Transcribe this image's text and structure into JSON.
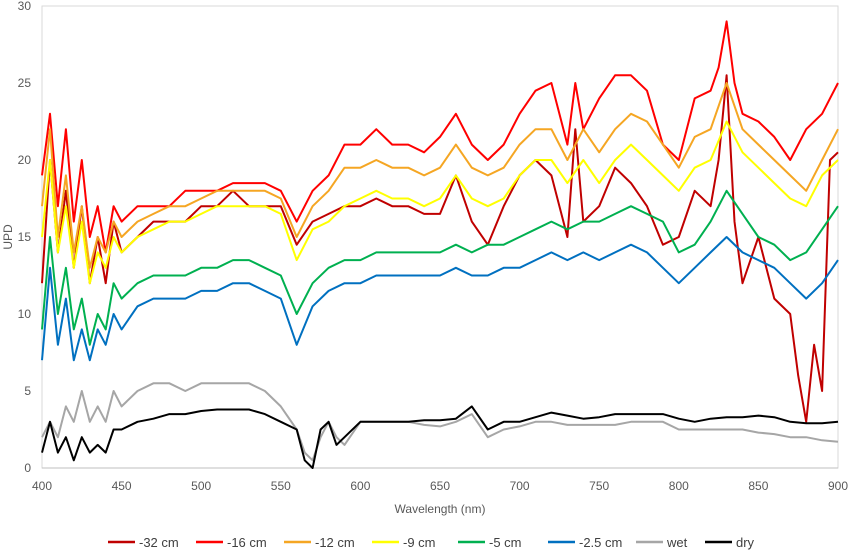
{
  "chart_data": {
    "type": "line",
    "title": "",
    "xlabel": "Wavelength (nm)",
    "ylabel": "UPD",
    "xlim": [
      400,
      900
    ],
    "ylim": [
      0,
      30
    ],
    "xticks": [
      400,
      450,
      500,
      550,
      600,
      650,
      700,
      750,
      800,
      850,
      900
    ],
    "yticks": [
      0,
      5,
      10,
      15,
      20,
      25,
      30
    ],
    "grid": false,
    "legend_position": "bottom",
    "series": [
      {
        "name": "-32 cm",
        "color": "#C00000",
        "x": [
          400,
          405,
          410,
          415,
          420,
          425,
          430,
          435,
          440,
          445,
          450,
          460,
          470,
          480,
          490,
          500,
          510,
          520,
          530,
          540,
          550,
          560,
          570,
          580,
          590,
          600,
          610,
          620,
          630,
          640,
          650,
          660,
          670,
          680,
          690,
          700,
          710,
          720,
          730,
          735,
          740,
          750,
          760,
          770,
          780,
          790,
          800,
          810,
          820,
          825,
          830,
          835,
          840,
          850,
          860,
          870,
          875,
          880,
          885,
          890,
          895,
          900
        ],
        "y": [
          12,
          20,
          14,
          18,
          13,
          17,
          12,
          15,
          12,
          16,
          14,
          15,
          16,
          16,
          16,
          17,
          17,
          18,
          17,
          17,
          17,
          14.5,
          16,
          16.5,
          17,
          17,
          17.5,
          17,
          17,
          16.5,
          16.5,
          19,
          16,
          14.5,
          17,
          19,
          20,
          19,
          15,
          22,
          16,
          17,
          19.5,
          18.5,
          17,
          14.5,
          15,
          18,
          17,
          20,
          25.5,
          16,
          12,
          15,
          11,
          10,
          6,
          3,
          8,
          5,
          20,
          20.5
        ]
      },
      {
        "name": "-16 cm",
        "color": "#FF0000",
        "x": [
          400,
          405,
          410,
          415,
          420,
          425,
          430,
          435,
          440,
          445,
          450,
          460,
          470,
          480,
          490,
          500,
          510,
          520,
          530,
          540,
          550,
          560,
          570,
          580,
          590,
          600,
          610,
          620,
          630,
          640,
          650,
          660,
          670,
          680,
          690,
          700,
          710,
          720,
          730,
          735,
          740,
          750,
          760,
          770,
          780,
          790,
          800,
          810,
          820,
          825,
          830,
          835,
          840,
          850,
          860,
          870,
          880,
          890,
          895,
          900
        ],
        "y": [
          19,
          23,
          17,
          22,
          16,
          20,
          15,
          17,
          14,
          17,
          16,
          17,
          17,
          17,
          18,
          18,
          18,
          18.5,
          18.5,
          18.5,
          18,
          16,
          18,
          19,
          21,
          21,
          22,
          21,
          21,
          20.5,
          21.5,
          23,
          21,
          20,
          21,
          23,
          24.5,
          25,
          21,
          25,
          22,
          24,
          25.5,
          25.5,
          24.5,
          21,
          20,
          24,
          24.5,
          26,
          29,
          25,
          23,
          22.5,
          21.5,
          20,
          22,
          23,
          24,
          25
        ]
      },
      {
        "name": "-12 cm",
        "color": "#F5A623",
        "x": [
          400,
          405,
          410,
          415,
          420,
          425,
          430,
          435,
          440,
          445,
          450,
          460,
          470,
          480,
          490,
          500,
          510,
          520,
          530,
          540,
          550,
          560,
          570,
          580,
          590,
          600,
          610,
          620,
          630,
          640,
          650,
          660,
          670,
          680,
          690,
          700,
          710,
          720,
          730,
          740,
          750,
          760,
          770,
          780,
          790,
          800,
          810,
          820,
          830,
          840,
          850,
          860,
          870,
          880,
          890,
          900
        ],
        "y": [
          17,
          22,
          15,
          19,
          14,
          17,
          13,
          15,
          14,
          16,
          15,
          16,
          16.5,
          17,
          17,
          17.5,
          18,
          18,
          18,
          18,
          17.5,
          15,
          17,
          18,
          19.5,
          19.5,
          20,
          19.5,
          19.5,
          19,
          19.5,
          21,
          19.5,
          19,
          19.5,
          21,
          22,
          22,
          20,
          22,
          20.5,
          22,
          23,
          22.5,
          21,
          19.5,
          21.5,
          22,
          25,
          22,
          21,
          20,
          19,
          18,
          20,
          22
        ]
      },
      {
        "name": "-9 cm",
        "color": "#FFFF00",
        "x": [
          400,
          405,
          410,
          415,
          420,
          425,
          430,
          435,
          440,
          445,
          450,
          460,
          470,
          480,
          490,
          500,
          510,
          520,
          530,
          540,
          550,
          560,
          570,
          580,
          590,
          600,
          610,
          620,
          630,
          640,
          650,
          660,
          670,
          680,
          690,
          700,
          710,
          720,
          730,
          740,
          750,
          760,
          770,
          780,
          790,
          800,
          810,
          820,
          830,
          840,
          850,
          860,
          870,
          880,
          890,
          900
        ],
        "y": [
          15,
          20,
          14,
          17,
          13,
          16,
          12,
          14,
          13,
          15,
          14,
          15,
          15.5,
          16,
          16,
          16.5,
          17,
          17,
          17,
          17,
          16.5,
          13.5,
          15.5,
          16,
          17,
          17.5,
          18,
          17.5,
          17.5,
          17,
          17.5,
          19,
          17.5,
          17,
          17.5,
          19,
          20,
          20,
          18.5,
          20,
          18.5,
          20,
          21,
          20,
          19,
          18,
          19.5,
          20,
          22.5,
          20.5,
          19.5,
          18.5,
          17.5,
          17,
          19,
          20
        ]
      },
      {
        "name": "-5 cm",
        "color": "#00B050",
        "x": [
          400,
          405,
          410,
          415,
          420,
          425,
          430,
          435,
          440,
          445,
          450,
          460,
          470,
          480,
          490,
          500,
          510,
          520,
          530,
          540,
          550,
          560,
          570,
          580,
          590,
          600,
          610,
          620,
          630,
          640,
          650,
          660,
          670,
          680,
          690,
          700,
          710,
          720,
          730,
          740,
          750,
          760,
          770,
          780,
          790,
          800,
          810,
          820,
          830,
          840,
          850,
          860,
          870,
          880,
          890,
          900
        ],
        "y": [
          9,
          15,
          10,
          13,
          9,
          11,
          8,
          10,
          9,
          12,
          11,
          12,
          12.5,
          12.5,
          12.5,
          13,
          13,
          13.5,
          13.5,
          13,
          12.5,
          10,
          12,
          13,
          13.5,
          13.5,
          14,
          14,
          14,
          14,
          14,
          14.5,
          14,
          14.5,
          14.5,
          15,
          15.5,
          16,
          15.5,
          16,
          16,
          16.5,
          17,
          16.5,
          16,
          14,
          14.5,
          16,
          18,
          16.5,
          15,
          14.5,
          13.5,
          14,
          15.5,
          17
        ]
      },
      {
        "name": "-2.5 cm",
        "color": "#0070C0",
        "x": [
          400,
          405,
          410,
          415,
          420,
          425,
          430,
          435,
          440,
          445,
          450,
          460,
          470,
          480,
          490,
          500,
          510,
          520,
          530,
          540,
          550,
          560,
          570,
          580,
          590,
          600,
          610,
          620,
          630,
          640,
          650,
          660,
          670,
          680,
          690,
          700,
          710,
          720,
          730,
          740,
          750,
          760,
          770,
          780,
          790,
          800,
          810,
          820,
          830,
          840,
          850,
          860,
          870,
          880,
          890,
          900
        ],
        "y": [
          7,
          13,
          8,
          11,
          7,
          9,
          7,
          9,
          8,
          10,
          9,
          10.5,
          11,
          11,
          11,
          11.5,
          11.5,
          12,
          12,
          11.5,
          11,
          8,
          10.5,
          11.5,
          12,
          12,
          12.5,
          12.5,
          12.5,
          12.5,
          12.5,
          13,
          12.5,
          12.5,
          13,
          13,
          13.5,
          14,
          13.5,
          14,
          13.5,
          14,
          14.5,
          14,
          13,
          12,
          13,
          14,
          15,
          14,
          13.5,
          13,
          12,
          11,
          12,
          13.5
        ]
      },
      {
        "name": "wet",
        "color": "#A6A6A6",
        "x": [
          400,
          405,
          410,
          415,
          420,
          425,
          430,
          435,
          440,
          445,
          450,
          460,
          470,
          480,
          490,
          500,
          510,
          520,
          530,
          540,
          550,
          560,
          565,
          570,
          575,
          580,
          585,
          590,
          600,
          610,
          620,
          630,
          640,
          650,
          660,
          670,
          680,
          690,
          700,
          710,
          720,
          730,
          740,
          750,
          760,
          770,
          780,
          790,
          800,
          810,
          820,
          830,
          840,
          850,
          860,
          870,
          880,
          890,
          900
        ],
        "y": [
          2,
          3,
          2,
          4,
          3,
          5,
          3,
          4,
          3,
          5,
          4,
          5,
          5.5,
          5.5,
          5,
          5.5,
          5.5,
          5.5,
          5.5,
          5,
          4,
          2.5,
          1,
          0.5,
          2,
          3,
          2,
          1.5,
          3,
          3,
          3,
          3,
          2.8,
          2.7,
          3,
          3.5,
          2,
          2.5,
          2.7,
          3,
          3,
          2.8,
          2.8,
          2.8,
          2.8,
          3,
          3,
          3,
          2.5,
          2.5,
          2.5,
          2.5,
          2.5,
          2.3,
          2.2,
          2,
          2,
          1.8,
          1.7
        ]
      },
      {
        "name": "dry",
        "color": "#000000",
        "x": [
          400,
          405,
          410,
          415,
          420,
          425,
          430,
          435,
          440,
          445,
          450,
          460,
          470,
          480,
          490,
          500,
          510,
          520,
          530,
          540,
          550,
          560,
          565,
          570,
          575,
          580,
          585,
          590,
          600,
          610,
          620,
          630,
          640,
          650,
          660,
          670,
          680,
          690,
          700,
          710,
          720,
          730,
          740,
          750,
          760,
          770,
          780,
          790,
          800,
          810,
          820,
          830,
          840,
          850,
          860,
          870,
          880,
          890,
          900
        ],
        "y": [
          1,
          3,
          1,
          2,
          0.5,
          2,
          1,
          1.5,
          1,
          2.5,
          2.5,
          3,
          3.2,
          3.5,
          3.5,
          3.7,
          3.8,
          3.8,
          3.8,
          3.5,
          3,
          2.5,
          0.5,
          0,
          2.5,
          3,
          1.5,
          2,
          3,
          3,
          3,
          3,
          3.1,
          3.1,
          3.2,
          4,
          2.5,
          3,
          3,
          3.3,
          3.6,
          3.4,
          3.2,
          3.3,
          3.5,
          3.5,
          3.5,
          3.5,
          3.2,
          3,
          3.2,
          3.3,
          3.3,
          3.4,
          3.3,
          3,
          2.9,
          2.9,
          3
        ]
      }
    ]
  }
}
